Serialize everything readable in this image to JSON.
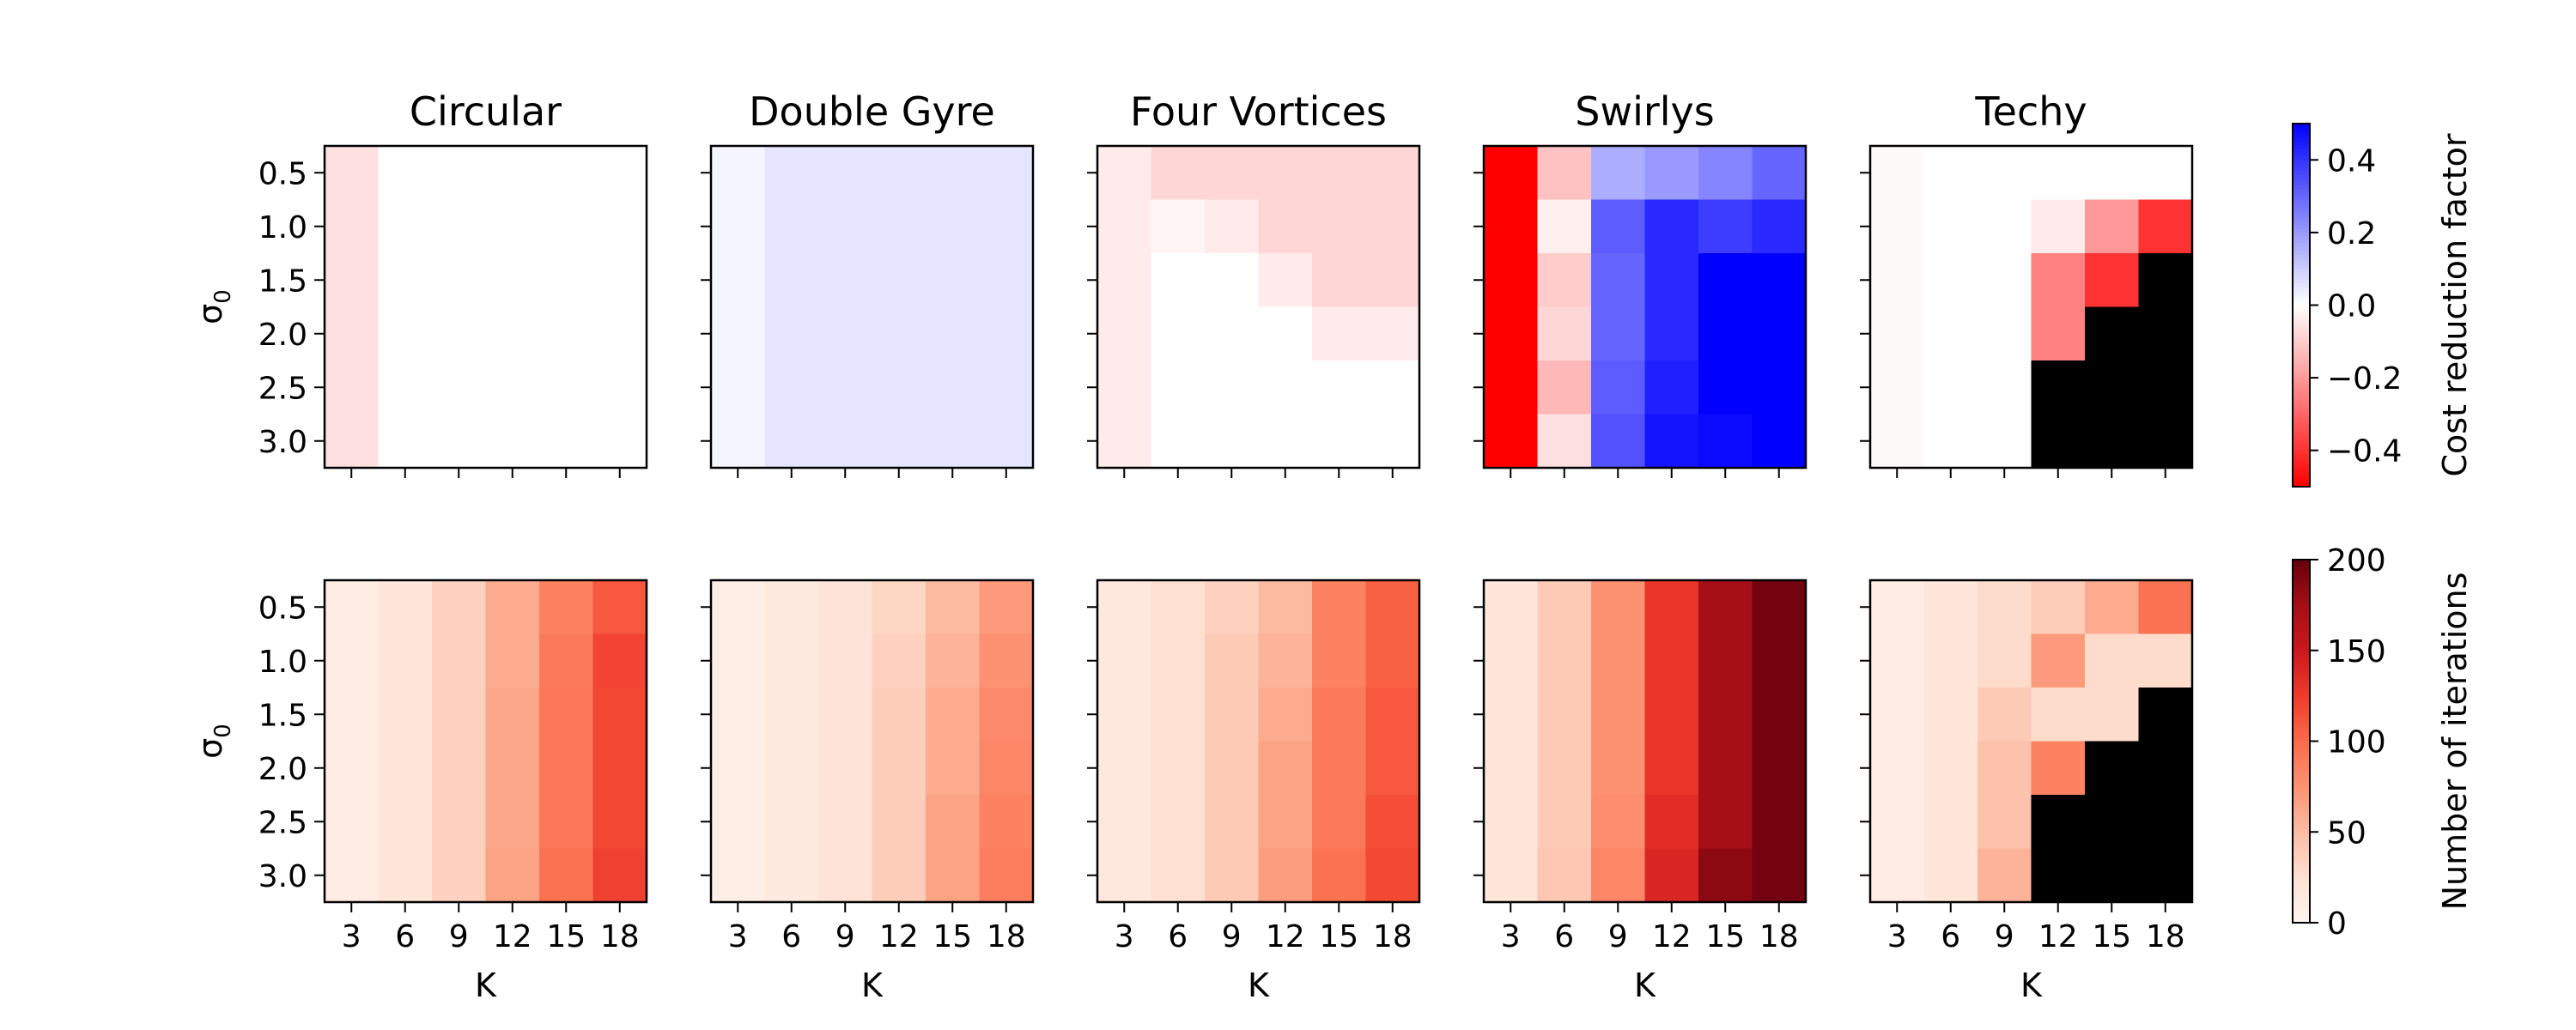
{
  "chart_data": {
    "type": "heatmap",
    "panels": [
      "Circular",
      "Double Gyre",
      "Four Vortices",
      "Swirlys",
      "Techy"
    ],
    "x_ticks": [
      "3",
      "6",
      "9",
      "12",
      "15",
      "18"
    ],
    "y_ticks": [
      "0.5",
      "1.0",
      "1.5",
      "2.0",
      "2.5",
      "3.0"
    ],
    "xlabel": "K",
    "ylabel": "σ",
    "ylabel_sub": "0",
    "rows": [
      {
        "name": "cost_reduction",
        "colorbar_label": "Cost reduction factor",
        "colorbar_ticks": [
          "0.4",
          "0.2",
          "0.0",
          "−0.2",
          "−0.4"
        ],
        "colorbar_tick_values": [
          0.4,
          0.2,
          0.0,
          -0.2,
          -0.4
        ],
        "vmin": -0.5,
        "vmax": 0.5,
        "colormap": "bwr_r",
        "values": {
          "Circular": [
            [
              -0.06,
              0,
              0,
              0,
              0,
              0
            ],
            [
              -0.06,
              0,
              0,
              0,
              0,
              0
            ],
            [
              -0.06,
              0,
              0,
              0,
              0,
              0
            ],
            [
              -0.06,
              0,
              0,
              0,
              0,
              0
            ],
            [
              -0.06,
              0,
              0,
              0,
              0,
              0
            ],
            [
              -0.06,
              0,
              0,
              0,
              0,
              0
            ]
          ],
          "Double Gyre": [
            [
              0.02,
              0.05,
              0.05,
              0.05,
              0.05,
              0.05
            ],
            [
              0.02,
              0.05,
              0.05,
              0.05,
              0.05,
              0.05
            ],
            [
              0.02,
              0.05,
              0.05,
              0.05,
              0.05,
              0.05
            ],
            [
              0.02,
              0.05,
              0.05,
              0.05,
              0.05,
              0.05
            ],
            [
              0.02,
              0.05,
              0.05,
              0.05,
              0.05,
              0.05
            ],
            [
              0.02,
              0.05,
              0.05,
              0.05,
              0.05,
              0.05
            ]
          ],
          "Four Vortices": [
            [
              -0.04,
              -0.08,
              -0.08,
              -0.08,
              -0.08,
              -0.08
            ],
            [
              -0.04,
              -0.02,
              -0.04,
              -0.08,
              -0.08,
              -0.08
            ],
            [
              -0.04,
              0,
              0,
              -0.04,
              -0.08,
              -0.08
            ],
            [
              -0.04,
              0,
              0,
              0,
              -0.04,
              -0.04
            ],
            [
              -0.04,
              0,
              0,
              0,
              0,
              0
            ],
            [
              -0.04,
              0,
              0,
              0,
              0,
              0
            ]
          ],
          "Swirlys": [
            [
              -0.5,
              -0.12,
              0.16,
              0.2,
              0.24,
              0.3
            ],
            [
              -0.5,
              -0.03,
              0.32,
              0.42,
              0.38,
              0.42
            ],
            [
              -0.5,
              -0.1,
              0.3,
              0.42,
              0.5,
              0.5
            ],
            [
              -0.5,
              -0.08,
              0.3,
              0.42,
              0.5,
              0.5
            ],
            [
              -0.5,
              -0.14,
              0.32,
              0.44,
              0.5,
              0.5
            ],
            [
              -0.5,
              -0.06,
              0.34,
              0.46,
              0.48,
              0.5
            ]
          ],
          "Techy": [
            [
              -0.01,
              0,
              0,
              0,
              0,
              0
            ],
            [
              -0.01,
              0,
              0,
              -0.04,
              -0.2,
              -0.4
            ],
            [
              -0.01,
              0,
              0,
              -0.25,
              -0.4,
              null
            ],
            [
              -0.01,
              0,
              0,
              -0.25,
              null,
              null
            ],
            [
              -0.01,
              0,
              0,
              null,
              null,
              null
            ],
            [
              -0.01,
              0,
              0,
              null,
              null,
              null
            ]
          ]
        }
      },
      {
        "name": "iterations",
        "colorbar_label": "Number of iterations",
        "colorbar_ticks": [
          "200",
          "150",
          "100",
          "50",
          "0"
        ],
        "colorbar_tick_values": [
          200,
          150,
          100,
          50,
          0
        ],
        "vmin": 0,
        "vmax": 200,
        "colormap": "Reds",
        "values": {
          "Circular": [
            [
              10,
              18,
              35,
              60,
              85,
              110
            ],
            [
              10,
              18,
              35,
              60,
              90,
              120
            ],
            [
              10,
              18,
              35,
              62,
              92,
              118
            ],
            [
              10,
              18,
              35,
              62,
              92,
              118
            ],
            [
              10,
              18,
              35,
              62,
              92,
              118
            ],
            [
              10,
              18,
              35,
              65,
              95,
              122
            ]
          ],
          "Double Gyre": [
            [
              8,
              14,
              20,
              32,
              50,
              70
            ],
            [
              8,
              14,
              20,
              35,
              55,
              75
            ],
            [
              8,
              14,
              20,
              38,
              60,
              80
            ],
            [
              8,
              14,
              20,
              38,
              60,
              82
            ],
            [
              8,
              14,
              20,
              38,
              65,
              85
            ],
            [
              8,
              14,
              20,
              38,
              65,
              88
            ]
          ],
          "Four Vortices": [
            [
              15,
              25,
              35,
              50,
              85,
              105
            ],
            [
              15,
              25,
              40,
              55,
              85,
              105
            ],
            [
              15,
              25,
              40,
              60,
              90,
              110
            ],
            [
              15,
              25,
              40,
              65,
              90,
              110
            ],
            [
              15,
              25,
              40,
              65,
              90,
              115
            ],
            [
              15,
              25,
              40,
              68,
              95,
              118
            ]
          ],
          "Swirlys": [
            [
              18,
              40,
              75,
              130,
              175,
              195
            ],
            [
              18,
              40,
              75,
              130,
              175,
              195
            ],
            [
              18,
              40,
              75,
              130,
              175,
              195
            ],
            [
              18,
              40,
              75,
              130,
              175,
              195
            ],
            [
              18,
              40,
              78,
              135,
              175,
              195
            ],
            [
              18,
              42,
              82,
              140,
              185,
              195
            ]
          ],
          "Techy": [
            [
              10,
              18,
              28,
              38,
              60,
              95
            ],
            [
              10,
              18,
              28,
              70,
              28,
              28
            ],
            [
              10,
              18,
              40,
              28,
              28,
              null
            ],
            [
              10,
              18,
              45,
              85,
              null,
              null
            ],
            [
              10,
              18,
              45,
              null,
              null,
              null
            ],
            [
              10,
              18,
              55,
              null,
              null,
              null
            ]
          ]
        }
      }
    ]
  }
}
